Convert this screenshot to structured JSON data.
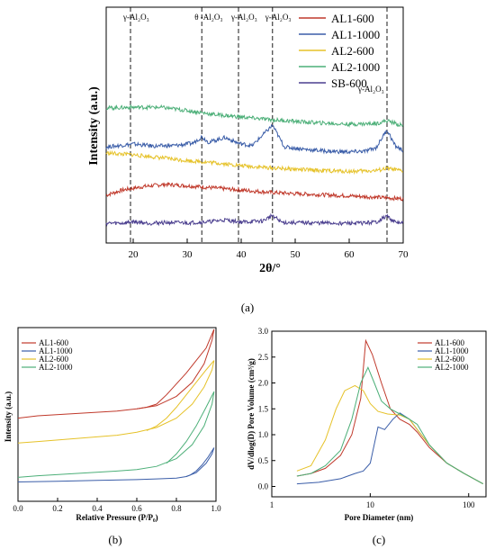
{
  "chart_data": [
    {
      "type": "line",
      "panel": "(a)",
      "xlabel": "2θ/°",
      "ylabel": "Intensity (a.u.)",
      "xlim": [
        15,
        70
      ],
      "xticks": [
        20,
        30,
        40,
        50,
        60,
        70
      ],
      "legend_position": "top-right",
      "reference_lines": [
        {
          "x": 19.5,
          "label": "γ-Al₂O₃"
        },
        {
          "x": 32.7,
          "label": "θ -Al₂O₃"
        },
        {
          "x": 39.5,
          "label": "γ-Al₂O₃"
        },
        {
          "x": 45.8,
          "label": "γ-Al₂O₃"
        },
        {
          "x": 67.0,
          "label": "γ-Al₂O₃"
        }
      ],
      "series": [
        {
          "name": "AL1-600",
          "color": "#c0392b",
          "offset": 2,
          "x": [
            15,
            18,
            22,
            26,
            30,
            35,
            40,
            45,
            50,
            55,
            60,
            65,
            70
          ],
          "values": [
            0.08,
            0.22,
            0.32,
            0.38,
            0.34,
            0.28,
            0.22,
            0.16,
            0.12,
            0.09,
            0.06,
            0.02,
            -0.02
          ]
        },
        {
          "name": "AL1-1000",
          "color": "#3a5da8",
          "offset": 4,
          "x": [
            15,
            17,
            20,
            24,
            28,
            31,
            32.7,
            34,
            37,
            39.5,
            42,
            45.8,
            48,
            52,
            56,
            60,
            63,
            65,
            67,
            68.5,
            70
          ],
          "values": [
            0.02,
            0.05,
            0.1,
            0.04,
            0.06,
            0.12,
            0.3,
            0.15,
            0.28,
            0.12,
            0.05,
            0.62,
            0.02,
            -0.05,
            -0.1,
            -0.12,
            -0.1,
            0.0,
            0.5,
            0.05,
            -0.08
          ]
        },
        {
          "name": "AL2-600",
          "color": "#e6c229",
          "offset": 3,
          "x": [
            15,
            20,
            25,
            30,
            35,
            40,
            45,
            50,
            55,
            60,
            65,
            67,
            70
          ],
          "values": [
            0.55,
            0.5,
            0.42,
            0.34,
            0.28,
            0.2,
            0.14,
            0.1,
            0.06,
            0.04,
            0.06,
            0.12,
            0.04
          ]
        },
        {
          "name": "AL2-1000",
          "color": "#4caf78",
          "offset": 5,
          "x": [
            15,
            20,
            25,
            30,
            35,
            40,
            45,
            50,
            55,
            60,
            65,
            67,
            70
          ],
          "values": [
            0.4,
            0.42,
            0.42,
            0.33,
            0.22,
            0.15,
            0.08,
            0.03,
            -0.02,
            -0.05,
            -0.03,
            0.05,
            -0.1
          ]
        },
        {
          "name": "SB-600",
          "color": "#4b3f8f",
          "offset": 1,
          "x": [
            15,
            18,
            20,
            23,
            26,
            30,
            34,
            37,
            40,
            44,
            45.8,
            47.5,
            52,
            57,
            62,
            65,
            67,
            68.5,
            70
          ],
          "values": [
            0.0,
            0.0,
            0.04,
            0.0,
            0.02,
            0.01,
            0.04,
            0.09,
            0.03,
            0.06,
            0.22,
            0.02,
            0.01,
            0.0,
            0.0,
            0.03,
            0.2,
            0.02,
            0.0
          ]
        }
      ]
    },
    {
      "type": "line",
      "panel": "(b)",
      "xlabel": "Relative Pressure (P/P₀)",
      "ylabel": "Intensity (a.u.)",
      "xlim": [
        0,
        1
      ],
      "xticks": [
        "0.0",
        "0.2",
        "0.4",
        "0.6",
        "0.8",
        "1.0"
      ],
      "legend_position": "top-left",
      "series": [
        {
          "name": "AL1-600",
          "color": "#c0392b",
          "adsorption": {
            "x": [
              0,
              0.1,
              0.3,
              0.5,
              0.6,
              0.7,
              0.8,
              0.88,
              0.94,
              0.98,
              0.99
            ],
            "values": [
              0.43,
              0.445,
              0.46,
              0.475,
              0.49,
              0.51,
              0.57,
              0.66,
              0.78,
              0.93,
              1.0
            ]
          },
          "desorption": {
            "x": [
              0.99,
              0.95,
              0.9,
              0.85,
              0.8,
              0.75,
              0.7,
              0.65,
              0.6
            ],
            "values": [
              1.0,
              0.88,
              0.8,
              0.72,
              0.65,
              0.58,
              0.52,
              0.5,
              0.49
            ]
          }
        },
        {
          "name": "AL1-1000",
          "color": "#3a5da8",
          "adsorption": {
            "x": [
              0,
              0.2,
              0.4,
              0.6,
              0.7,
              0.8,
              0.85,
              0.9,
              0.95,
              0.98,
              0.99
            ],
            "values": [
              0.02,
              0.025,
              0.03,
              0.035,
              0.04,
              0.045,
              0.055,
              0.08,
              0.14,
              0.2,
              0.24
            ]
          },
          "desorption": {
            "x": [
              0.99,
              0.96,
              0.93,
              0.9,
              0.87,
              0.85
            ],
            "values": [
              0.24,
              0.18,
              0.13,
              0.09,
              0.065,
              0.055
            ]
          }
        },
        {
          "name": "AL2-600",
          "color": "#e6c229",
          "adsorption": {
            "x": [
              0,
              0.1,
              0.3,
              0.5,
              0.6,
              0.7,
              0.8,
              0.88,
              0.94,
              0.98,
              0.99
            ],
            "values": [
              0.27,
              0.28,
              0.3,
              0.32,
              0.34,
              0.37,
              0.43,
              0.52,
              0.63,
              0.74,
              0.8
            ]
          },
          "desorption": {
            "x": [
              0.99,
              0.95,
              0.9,
              0.85,
              0.8,
              0.75,
              0.7,
              0.65
            ],
            "values": [
              0.8,
              0.74,
              0.66,
              0.58,
              0.5,
              0.43,
              0.38,
              0.35
            ]
          }
        },
        {
          "name": "AL2-1000",
          "color": "#4caf78",
          "adsorption": {
            "x": [
              0,
              0.1,
              0.3,
              0.5,
              0.6,
              0.7,
              0.8,
              0.88,
              0.94,
              0.98,
              0.99
            ],
            "values": [
              0.05,
              0.06,
              0.075,
              0.09,
              0.1,
              0.12,
              0.17,
              0.26,
              0.38,
              0.52,
              0.6
            ]
          },
          "desorption": {
            "x": [
              0.99,
              0.95,
              0.9,
              0.85,
              0.8,
              0.75
            ],
            "values": [
              0.6,
              0.5,
              0.38,
              0.28,
              0.2,
              0.14
            ]
          }
        }
      ]
    },
    {
      "type": "line",
      "panel": "(c)",
      "xlabel": "Pore Diameter (nm)",
      "ylabel": "dV/dlog(D) Pore Volume (cm³/g)",
      "xscale": "log",
      "xlim": [
        1,
        150
      ],
      "xticks": [
        "1",
        "10",
        "100"
      ],
      "ylim": [
        -0.2,
        3.0
      ],
      "yticks": [
        "0.0",
        "0.5",
        "1.0",
        "1.5",
        "2.0",
        "2.5",
        "3.0"
      ],
      "legend_position": "top-right",
      "series": [
        {
          "name": "AL1-600",
          "color": "#c0392b",
          "x": [
            1.8,
            2.5,
            3.5,
            5,
            6.5,
            8,
            9,
            10.5,
            13,
            16,
            20,
            25,
            30,
            40,
            60,
            90,
            140
          ],
          "values": [
            0.2,
            0.25,
            0.35,
            0.6,
            1.0,
            1.7,
            2.82,
            2.55,
            2.0,
            1.5,
            1.3,
            1.2,
            1.05,
            0.75,
            0.45,
            0.25,
            0.05
          ]
        },
        {
          "name": "AL1-1000",
          "color": "#3a5da8",
          "x": [
            1.8,
            3,
            5,
            7,
            8.5,
            10,
            12,
            14,
            17,
            20,
            25,
            30,
            40,
            60,
            90,
            140
          ],
          "values": [
            0.05,
            0.08,
            0.15,
            0.25,
            0.3,
            0.45,
            1.15,
            1.1,
            1.3,
            1.42,
            1.3,
            1.1,
            0.8,
            0.45,
            0.25,
            0.05
          ]
        },
        {
          "name": "AL2-600",
          "color": "#e6c229",
          "x": [
            1.8,
            2.5,
            3.5,
            4.5,
            5.5,
            7,
            8.5,
            10,
            12,
            15,
            20,
            25,
            30,
            40,
            60,
            90,
            140
          ],
          "values": [
            0.3,
            0.4,
            0.9,
            1.5,
            1.85,
            1.95,
            1.85,
            1.6,
            1.45,
            1.4,
            1.38,
            1.3,
            1.1,
            0.8,
            0.45,
            0.25,
            0.05
          ]
        },
        {
          "name": "AL2-1000",
          "color": "#4caf78",
          "x": [
            1.8,
            2.5,
            3.5,
            5,
            6.5,
            8,
            9.5,
            11,
            13,
            16,
            20,
            25,
            30,
            40,
            60,
            90,
            140
          ],
          "values": [
            0.2,
            0.25,
            0.4,
            0.7,
            1.3,
            2.0,
            2.3,
            2.0,
            1.65,
            1.5,
            1.4,
            1.3,
            1.2,
            0.8,
            0.45,
            0.25,
            0.05
          ]
        }
      ]
    }
  ]
}
